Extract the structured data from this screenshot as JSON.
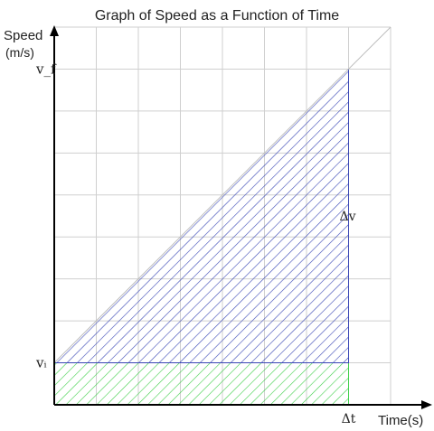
{
  "chart_data": {
    "type": "area",
    "title": "Graph of Speed as a Function of Time",
    "xlabel": "Time(s)",
    "ylabel": "Speed",
    "ylabel_unit": "(m/s)",
    "x_tick_labels": [
      "Δt"
    ],
    "y_tick_labels": [
      "vᵢ",
      "v_f"
    ],
    "annotations": [
      "Δv"
    ],
    "grid": true,
    "x_range": [
      0,
      8
    ],
    "y_range": [
      0,
      9
    ],
    "delta_t": 7,
    "v_i": 1,
    "v_f": 8,
    "series": [
      {
        "values": [
          [
            0,
            1
          ],
          [
            7,
            8
          ]
        ],
        "fill": "diagonal-hatch",
        "color": "#3a47b5"
      },
      {
        "values": [
          [
            0,
            1
          ],
          [
            7,
            1
          ]
        ],
        "fill": "diagonal-hatch",
        "color": "#3fcf4a"
      }
    ],
    "colors": {
      "blue_hatch": "#3a47b5",
      "green_hatch": "#3fcf4a",
      "grid": "#cfcfcf",
      "axis": "#000000"
    }
  }
}
